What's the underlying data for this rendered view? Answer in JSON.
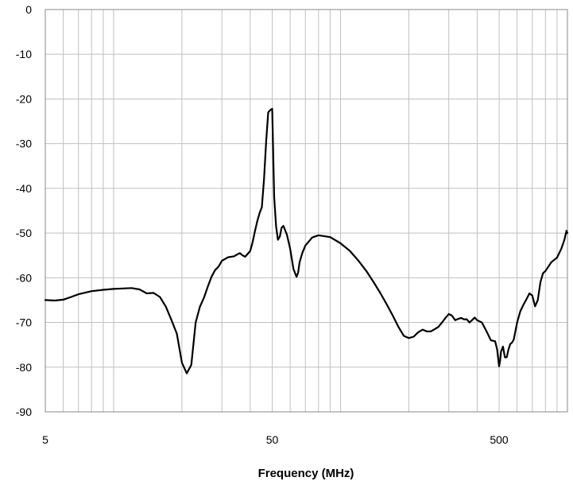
{
  "chart_data": {
    "type": "line",
    "title": "",
    "xlabel": "Frequency (MHz)",
    "ylabel": "",
    "x_scale": "log",
    "xlim": [
      5,
      1000
    ],
    "ylim": [
      -90,
      0
    ],
    "grid": true,
    "x_tick_labels": [
      "5",
      "50",
      "500"
    ],
    "x_tick_values": [
      5,
      50,
      500
    ],
    "y_tick_labels": [
      "0",
      "-10",
      "-20",
      "-30",
      "-40",
      "-50",
      "-60",
      "-70",
      "-80",
      "-90"
    ],
    "y_tick_values": [
      0,
      -10,
      -20,
      -30,
      -40,
      -50,
      -60,
      -70,
      -80,
      -90
    ],
    "line_color": "#000000",
    "grid_color": "#c0c0c0",
    "series": [
      {
        "x": [
          5,
          5.5,
          6,
          6.5,
          7,
          8,
          9,
          10,
          11,
          12,
          13,
          14,
          15,
          16,
          17,
          18,
          19,
          20,
          21,
          22,
          23,
          24,
          25,
          26,
          27,
          28,
          29,
          30,
          31,
          32,
          33,
          34,
          35,
          36,
          37,
          38,
          40,
          41,
          42,
          43,
          44,
          45,
          46,
          47,
          48,
          49,
          50,
          51,
          52,
          53,
          54,
          55,
          56,
          58,
          60,
          62,
          64,
          65,
          66,
          68,
          70,
          75,
          80,
          90,
          100,
          110,
          120,
          130,
          140,
          150,
          160,
          170,
          180,
          190,
          200,
          210,
          220,
          230,
          240,
          250,
          260,
          270,
          280,
          290,
          300,
          310,
          320,
          330,
          340,
          350,
          360,
          370,
          380,
          390,
          400,
          420,
          440,
          460,
          480,
          490,
          500,
          505,
          510,
          520,
          530,
          540,
          550,
          560,
          570,
          580,
          600,
          620,
          640,
          660,
          680,
          700,
          720,
          740,
          760,
          780,
          800,
          850,
          900,
          940,
          970,
          990,
          1000
        ],
        "y": [
          -65,
          -65.1,
          -64.9,
          -64.3,
          -63.7,
          -63,
          -62.7,
          -62.5,
          -62.4,
          -62.3,
          -62.6,
          -63.5,
          -63.4,
          -64.3,
          -66.5,
          -69.5,
          -72.5,
          -79,
          -81.4,
          -79.5,
          -70,
          -66.5,
          -64.5,
          -62,
          -59.8,
          -58.3,
          -57.5,
          -56.2,
          -55.8,
          -55.4,
          -55.3,
          -55.2,
          -54.8,
          -54.5,
          -55,
          -55.3,
          -54,
          -52,
          -49.5,
          -47.3,
          -45.5,
          -44.2,
          -38,
          -29.5,
          -23,
          -22.5,
          -22.2,
          -42,
          -48.5,
          -51.5,
          -50.8,
          -48.8,
          -48.4,
          -50.3,
          -53.5,
          -58,
          -59.8,
          -58.9,
          -56.5,
          -54.3,
          -52.8,
          -51,
          -50.5,
          -50.9,
          -52.3,
          -54,
          -56.2,
          -58.5,
          -61,
          -63.5,
          -66,
          -68.5,
          -71,
          -73,
          -73.5,
          -73.2,
          -72.2,
          -71.6,
          -72,
          -72,
          -71.5,
          -71,
          -70,
          -69,
          -68.1,
          -68.5,
          -69.5,
          -69.2,
          -69,
          -69.3,
          -69.3,
          -70,
          -69.5,
          -68.9,
          -69.5,
          -70,
          -72,
          -74,
          -74.2,
          -76,
          -79.8,
          -78.5,
          -76.5,
          -75.4,
          -77.8,
          -77.8,
          -76,
          -74.8,
          -74.5,
          -73.8,
          -70,
          -67.5,
          -66,
          -64.8,
          -63.5,
          -64,
          -66.4,
          -65,
          -61,
          -59,
          -58.5,
          -56.5,
          -55.5,
          -53.5,
          -51.5,
          -49.5,
          -50
        ]
      }
    ]
  }
}
